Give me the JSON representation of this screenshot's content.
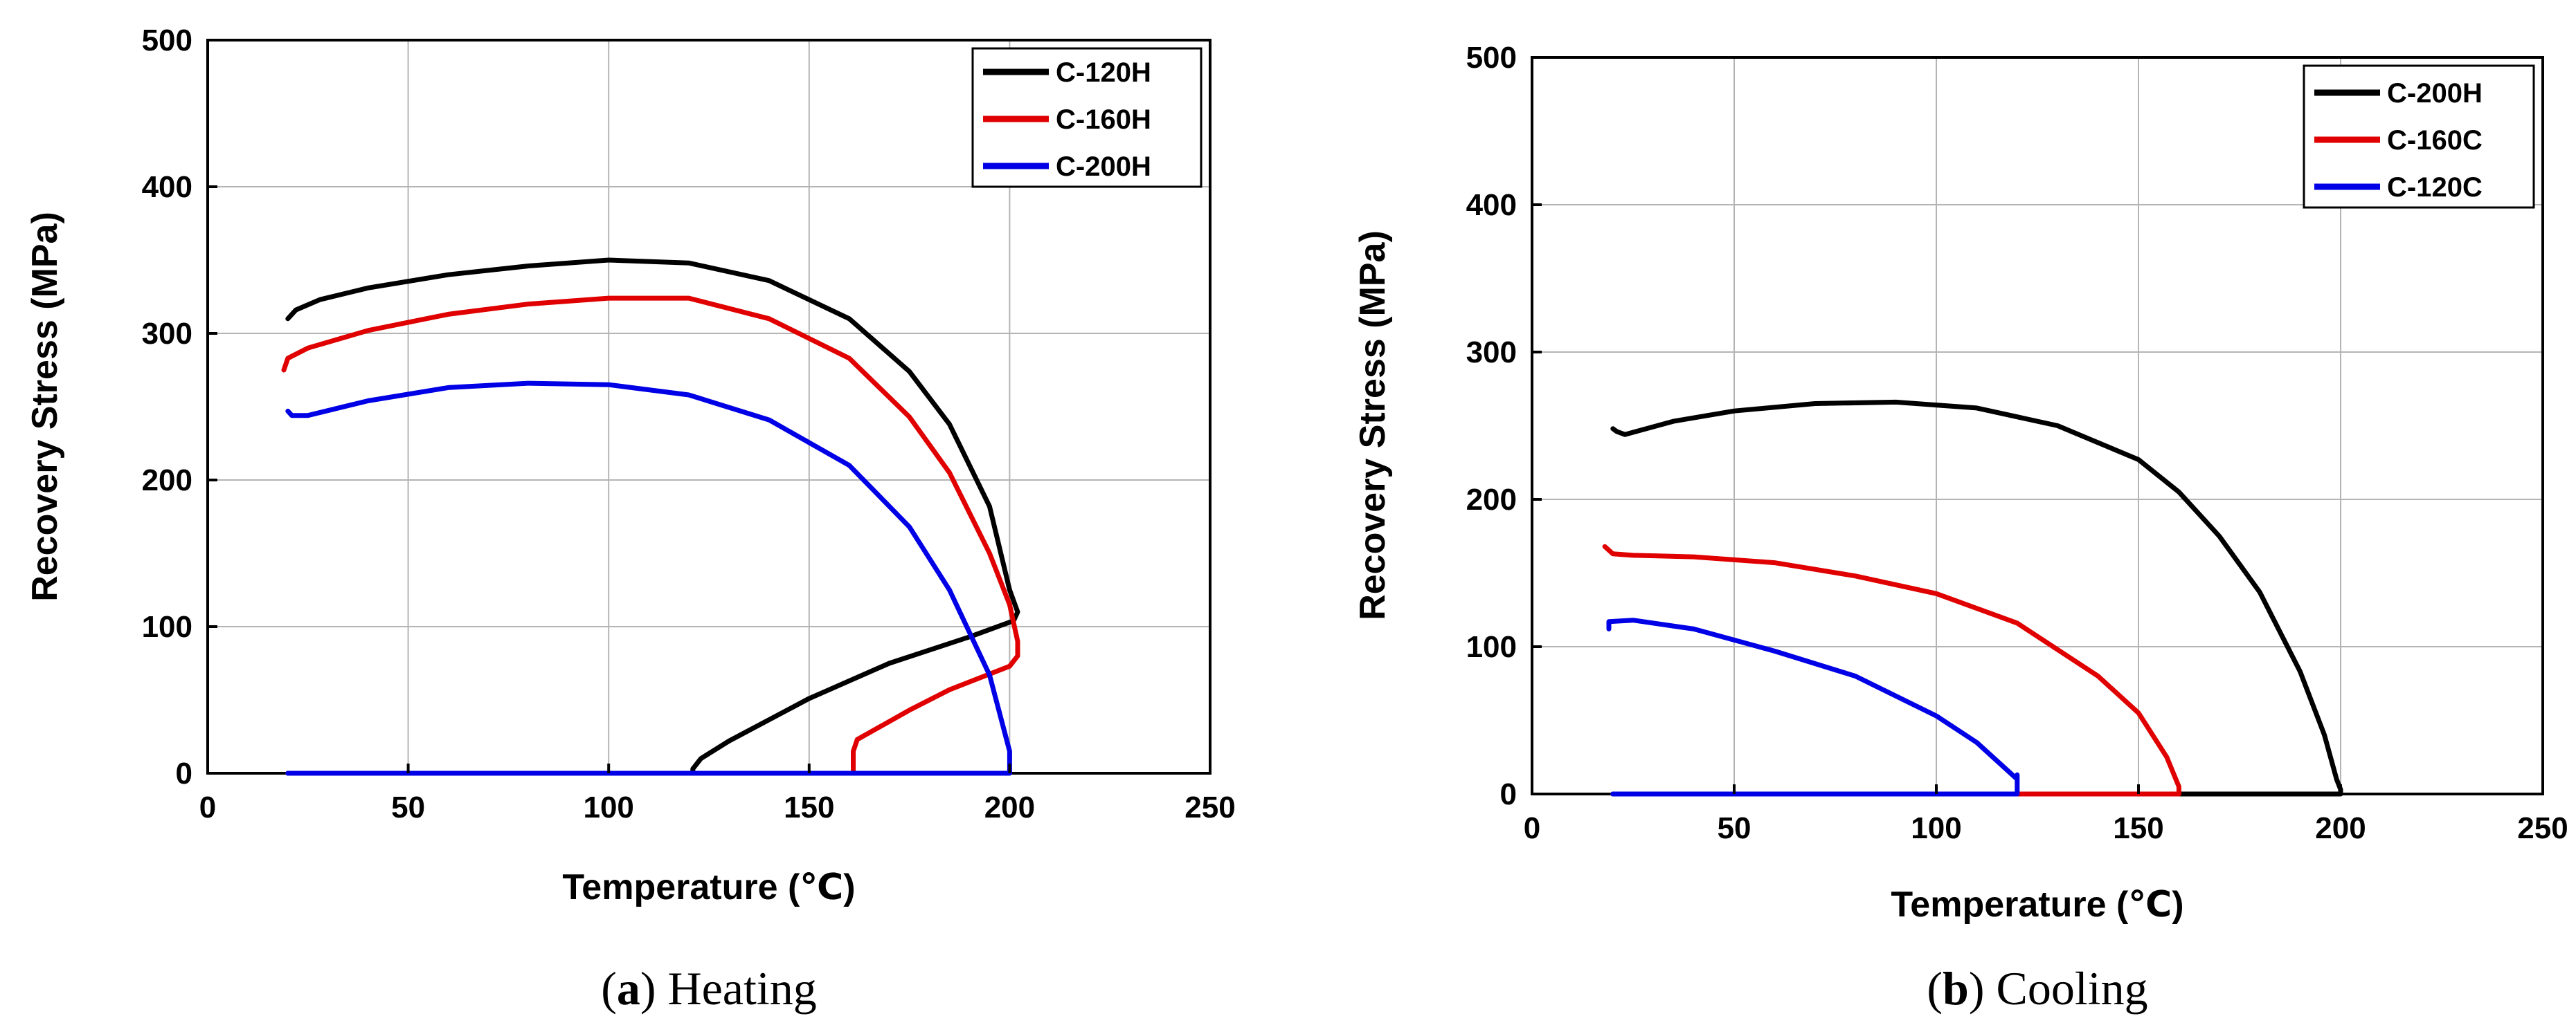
{
  "chart_data": [
    {
      "id": "heating",
      "type": "line",
      "caption": {
        "letter": "a",
        "text": " Heating"
      },
      "xlabel": "Temperature (℃)",
      "ylabel": "Recovery Stress (MPa)",
      "xlim": [
        0,
        250
      ],
      "ylim": [
        0,
        500
      ],
      "xticks": [
        0,
        50,
        100,
        150,
        200,
        250
      ],
      "yticks": [
        0,
        100,
        200,
        300,
        400,
        500
      ],
      "grid": true,
      "legend_position": "top-right",
      "series": [
        {
          "name": "C-120H",
          "color": "#000000",
          "points": [
            [
              20,
              310
            ],
            [
              22,
              316
            ],
            [
              28,
              323
            ],
            [
              40,
              331
            ],
            [
              60,
              340
            ],
            [
              80,
              346
            ],
            [
              100,
              350
            ],
            [
              120,
              348
            ],
            [
              140,
              336
            ],
            [
              160,
              310
            ],
            [
              175,
              274
            ],
            [
              185,
              238
            ],
            [
              195,
              182
            ],
            [
              200,
              125
            ],
            [
              202,
              110
            ],
            [
              201,
              104
            ],
            [
              190,
              93
            ],
            [
              170,
              75
            ],
            [
              150,
              51
            ],
            [
              130,
              22
            ],
            [
              123,
              10
            ],
            [
              121,
              3
            ],
            [
              121,
              0
            ],
            [
              20,
              0
            ]
          ]
        },
        {
          "name": "C-160H",
          "color": "#e00000",
          "points": [
            [
              19,
              275
            ],
            [
              20,
              283
            ],
            [
              25,
              290
            ],
            [
              40,
              302
            ],
            [
              60,
              313
            ],
            [
              80,
              320
            ],
            [
              100,
              324
            ],
            [
              120,
              324
            ],
            [
              140,
              310
            ],
            [
              160,
              283
            ],
            [
              175,
              243
            ],
            [
              185,
              205
            ],
            [
              195,
              150
            ],
            [
              200,
              115
            ],
            [
              202,
              90
            ],
            [
              202,
              80
            ],
            [
              200,
              73
            ],
            [
              185,
              57
            ],
            [
              175,
              43
            ],
            [
              162,
              23
            ],
            [
              161,
              15
            ],
            [
              161,
              0
            ],
            [
              20,
              0
            ]
          ]
        },
        {
          "name": "C-200H",
          "color": "#0000e6",
          "points": [
            [
              20,
              247
            ],
            [
              21,
              244
            ],
            [
              25,
              244
            ],
            [
              40,
              254
            ],
            [
              60,
              263
            ],
            [
              80,
              266
            ],
            [
              100,
              265
            ],
            [
              120,
              258
            ],
            [
              140,
              241
            ],
            [
              160,
              210
            ],
            [
              175,
              168
            ],
            [
              185,
              125
            ],
            [
              195,
              67
            ],
            [
              200,
              15
            ],
            [
              200,
              0
            ],
            [
              20,
              0
            ]
          ]
        }
      ]
    },
    {
      "id": "cooling",
      "type": "line",
      "caption": {
        "letter": "b",
        "text": " Cooling"
      },
      "xlabel": "Temperature (℃)",
      "ylabel": "Recovery Stress (MPa)",
      "xlim": [
        0,
        250
      ],
      "ylim": [
        0,
        500
      ],
      "xticks": [
        0,
        50,
        100,
        150,
        200,
        250
      ],
      "yticks": [
        0,
        100,
        200,
        300,
        400,
        500
      ],
      "grid": true,
      "legend_position": "top-right",
      "series": [
        {
          "name": "C-200H",
          "color": "#000000",
          "points": [
            [
              20,
              248
            ],
            [
              21,
              246
            ],
            [
              23,
              244
            ],
            [
              35,
              253
            ],
            [
              50,
              260
            ],
            [
              70,
              265
            ],
            [
              90,
              266
            ],
            [
              110,
              262
            ],
            [
              130,
              250
            ],
            [
              150,
              227
            ],
            [
              160,
              205
            ],
            [
              170,
              175
            ],
            [
              180,
              137
            ],
            [
              190,
              83
            ],
            [
              196,
              40
            ],
            [
              199,
              10
            ],
            [
              200,
              3
            ],
            [
              200,
              0
            ],
            [
              20,
              0
            ]
          ]
        },
        {
          "name": "C-160C",
          "color": "#e00000",
          "points": [
            [
              18,
              168
            ],
            [
              20,
              163
            ],
            [
              25,
              162
            ],
            [
              40,
              161
            ],
            [
              60,
              157
            ],
            [
              80,
              148
            ],
            [
              100,
              136
            ],
            [
              120,
              116
            ],
            [
              140,
              80
            ],
            [
              150,
              55
            ],
            [
              157,
              25
            ],
            [
              160,
              5
            ],
            [
              160,
              0
            ],
            [
              20,
              0
            ]
          ]
        },
        {
          "name": "C-120C",
          "color": "#0000e6",
          "points": [
            [
              19,
              112
            ],
            [
              19,
              117
            ],
            [
              25,
              118
            ],
            [
              40,
              112
            ],
            [
              60,
              97
            ],
            [
              80,
              80
            ],
            [
              100,
              53
            ],
            [
              110,
              35
            ],
            [
              118,
              15
            ],
            [
              120,
              10
            ],
            [
              120,
              13
            ],
            [
              120,
              0
            ],
            [
              20,
              0
            ]
          ]
        }
      ]
    }
  ]
}
